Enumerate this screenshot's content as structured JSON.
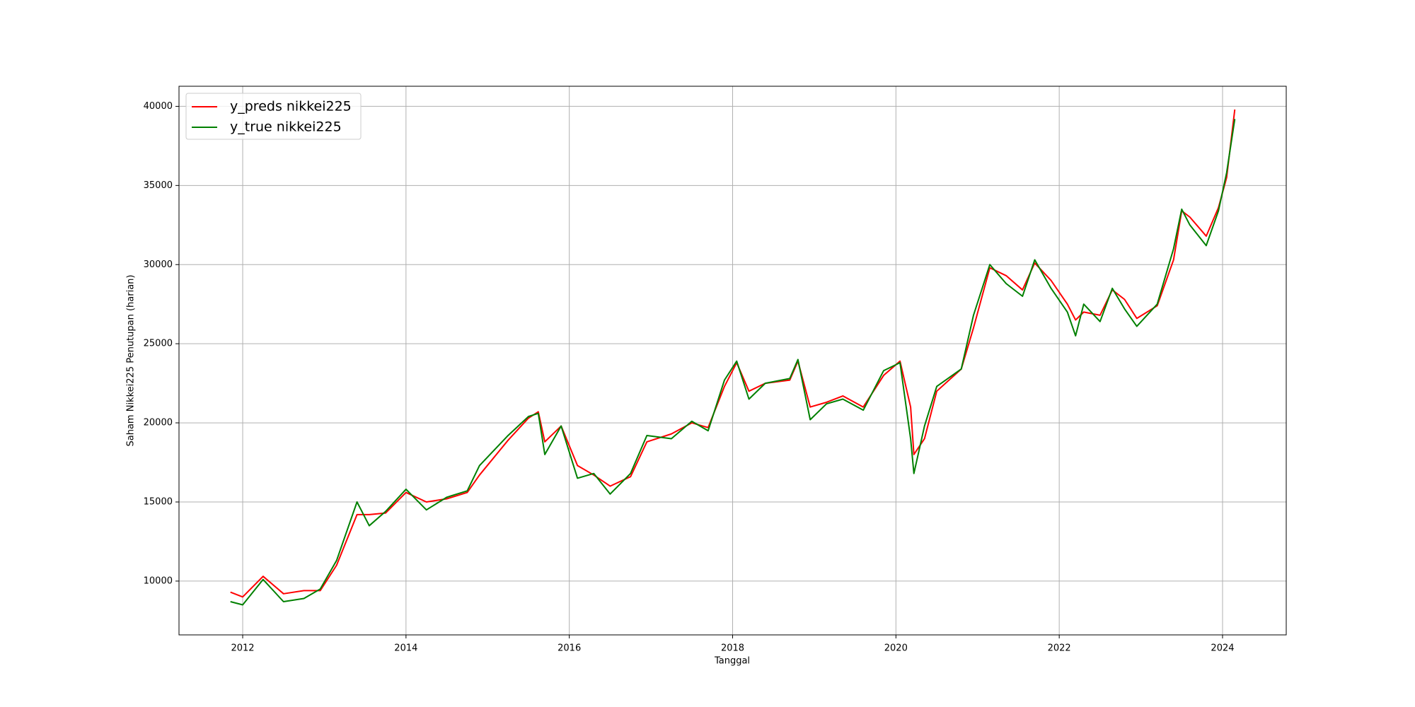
{
  "chart_data": {
    "type": "line",
    "xlabel": "Tanggal",
    "ylabel": "Saham Nikkei225 Penutupan (harian)",
    "x": [
      2011.85,
      2012.0,
      2012.25,
      2012.5,
      2012.75,
      2012.95,
      2013.15,
      2013.4,
      2013.55,
      2013.75,
      2014.0,
      2014.25,
      2014.5,
      2014.75,
      2014.9,
      2015.25,
      2015.5,
      2015.62,
      2015.7,
      2015.9,
      2016.1,
      2016.3,
      2016.5,
      2016.75,
      2016.95,
      2017.25,
      2017.5,
      2017.7,
      2017.9,
      2018.05,
      2018.2,
      2018.4,
      2018.7,
      2018.8,
      2018.95,
      2019.15,
      2019.35,
      2019.6,
      2019.85,
      2020.05,
      2020.18,
      2020.22,
      2020.35,
      2020.5,
      2020.8,
      2020.95,
      2021.15,
      2021.35,
      2021.55,
      2021.7,
      2021.9,
      2022.1,
      2022.2,
      2022.3,
      2022.5,
      2022.65,
      2022.8,
      2022.95,
      2023.2,
      2023.4,
      2023.5,
      2023.6,
      2023.8,
      2023.95,
      2024.05,
      2024.15
    ],
    "series": [
      {
        "name": "y_preds nikkei225",
        "color": "#ff0000",
        "values": [
          9300,
          9000,
          10300,
          9200,
          9400,
          9400,
          11000,
          14200,
          14200,
          14300,
          15600,
          15000,
          15200,
          15600,
          16700,
          18900,
          20300,
          20700,
          18800,
          19800,
          17300,
          16700,
          16000,
          16600,
          18800,
          19300,
          20000,
          19700,
          22300,
          23800,
          22000,
          22500,
          22700,
          23900,
          21000,
          21300,
          21700,
          21000,
          23000,
          23900,
          21000,
          18000,
          19000,
          22000,
          23400,
          26000,
          29800,
          29300,
          28400,
          30100,
          29000,
          27500,
          26500,
          27000,
          26800,
          28400,
          27800,
          26600,
          27400,
          30300,
          33400,
          33000,
          31800,
          33600,
          35500,
          39800
        ]
      },
      {
        "name": "y_true nikkei225",
        "color": "#008000",
        "values": [
          8700,
          8500,
          10100,
          8700,
          8900,
          9500,
          11300,
          15000,
          13500,
          14400,
          15800,
          14500,
          15300,
          15700,
          17300,
          19200,
          20400,
          20600,
          18000,
          19800,
          16500,
          16800,
          15500,
          16800,
          19200,
          19000,
          20100,
          19500,
          22700,
          23900,
          21500,
          22500,
          22800,
          24000,
          20200,
          21200,
          21500,
          20800,
          23300,
          23800,
          19000,
          16800,
          19800,
          22300,
          23400,
          26800,
          30000,
          28800,
          28000,
          30300,
          28500,
          27000,
          25500,
          27500,
          26400,
          28500,
          27200,
          26100,
          27500,
          31000,
          33500,
          32500,
          31200,
          33400,
          35800,
          39200
        ]
      }
    ],
    "xlim": [
      2011.22,
      2024.78
    ],
    "xticks": [
      2012,
      2014,
      2016,
      2018,
      2020,
      2022,
      2024
    ],
    "ylim": [
      6600,
      41270
    ],
    "yticks": [
      10000,
      15000,
      20000,
      25000,
      30000,
      35000,
      40000
    ],
    "grid": true,
    "legend": "upper left"
  }
}
